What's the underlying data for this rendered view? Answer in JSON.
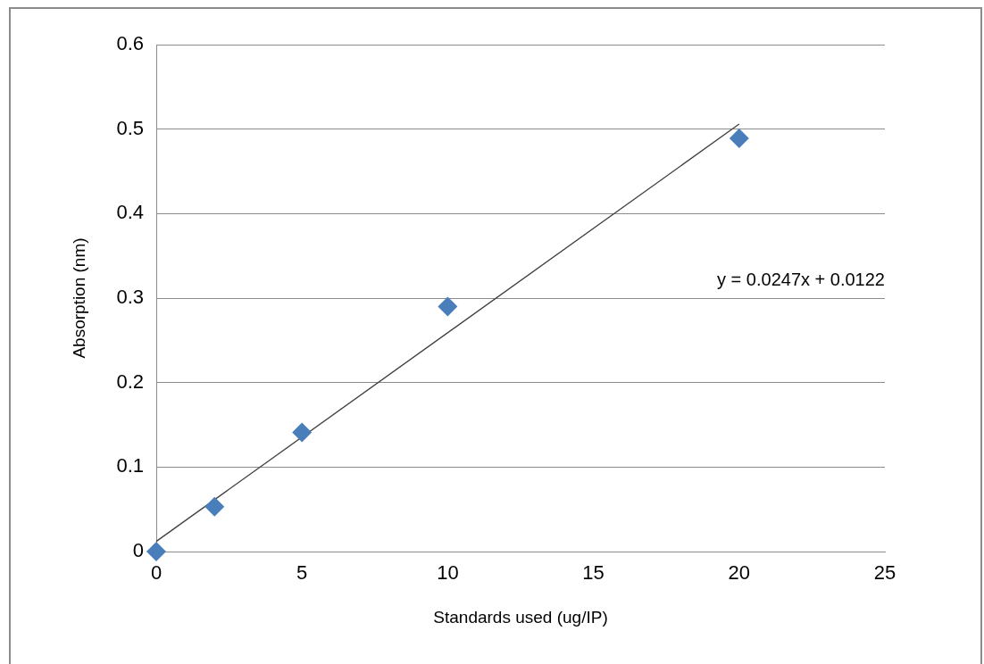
{
  "chart_data": {
    "type": "scatter",
    "xlabel": "Standards used (ug/IP)",
    "ylabel": "Absorption (nm)",
    "x": [
      0,
      2,
      5,
      10,
      20
    ],
    "series": [
      {
        "color": "#4a7ebb",
        "marker": "diamond",
        "values": [
          0,
          0.053,
          0.141,
          0.29,
          0.489
        ]
      },
      {
        "type": "line",
        "color": "#404040",
        "marker": "none",
        "x": [
          0,
          20
        ],
        "values": [
          0.012,
          0.506
        ]
      }
    ],
    "xlim": [
      0,
      25
    ],
    "xticks": [
      0,
      5,
      10,
      15,
      20,
      25
    ],
    "ylim": [
      0,
      0.6
    ],
    "yticks": [
      0,
      0.1,
      0.2,
      0.3,
      0.4,
      0.5,
      0.6
    ],
    "grid": "y",
    "legend": false,
    "annotations": [
      "y = 0.0247x + 0.0122"
    ]
  }
}
